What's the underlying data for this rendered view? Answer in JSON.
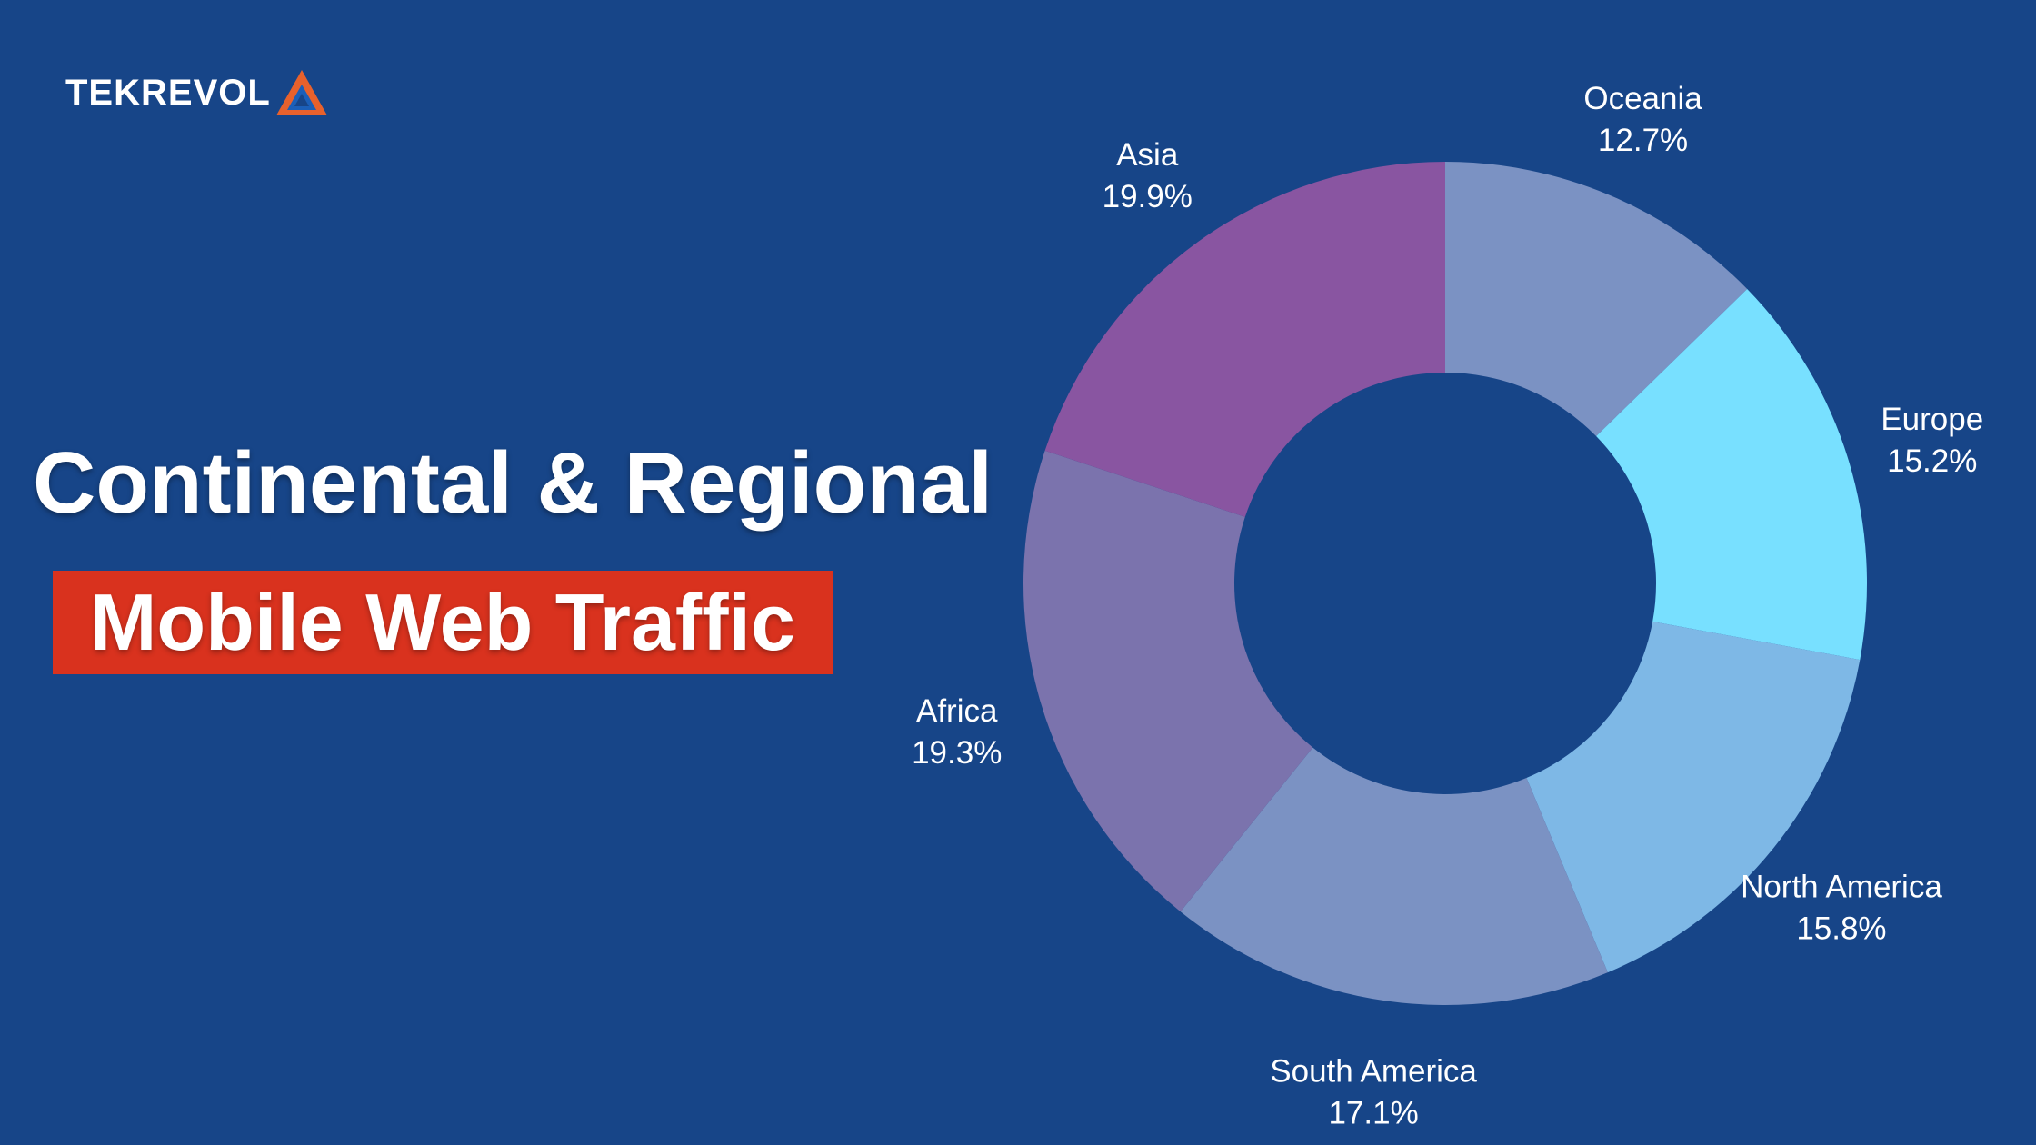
{
  "brand": {
    "name": "TEKREVOL",
    "logo_colors": {
      "primary": "#e8612c",
      "secondary": "#1b5fb8"
    }
  },
  "heading": {
    "title": "Continental & Regional",
    "subtitle": "Mobile Web Traffic"
  },
  "colors": {
    "background": "#174588",
    "accent": "#d9321e"
  },
  "chart_data": {
    "type": "pie",
    "variant": "donut",
    "title": "",
    "slices": [
      {
        "label": "Oceania",
        "value": 12.7,
        "value_label": "12.7%",
        "color": "#7b92c3"
      },
      {
        "label": "Europe",
        "value": 15.2,
        "value_label": "15.2%",
        "color": "#78e0ff"
      },
      {
        "label": "North America",
        "value": 15.8,
        "value_label": "15.8%",
        "color": "#7eb8e6"
      },
      {
        "label": "South America",
        "value": 17.1,
        "value_label": "17.1%",
        "color": "#7b92c3"
      },
      {
        "label": "Africa",
        "value": 19.3,
        "value_label": "19.3%",
        "color": "#7b73ad"
      },
      {
        "label": "Asia",
        "value": 19.9,
        "value_label": "19.9%",
        "color": "#8955a1"
      }
    ],
    "start_angle": "12 o'clock",
    "direction": "clockwise",
    "legend": "none"
  }
}
